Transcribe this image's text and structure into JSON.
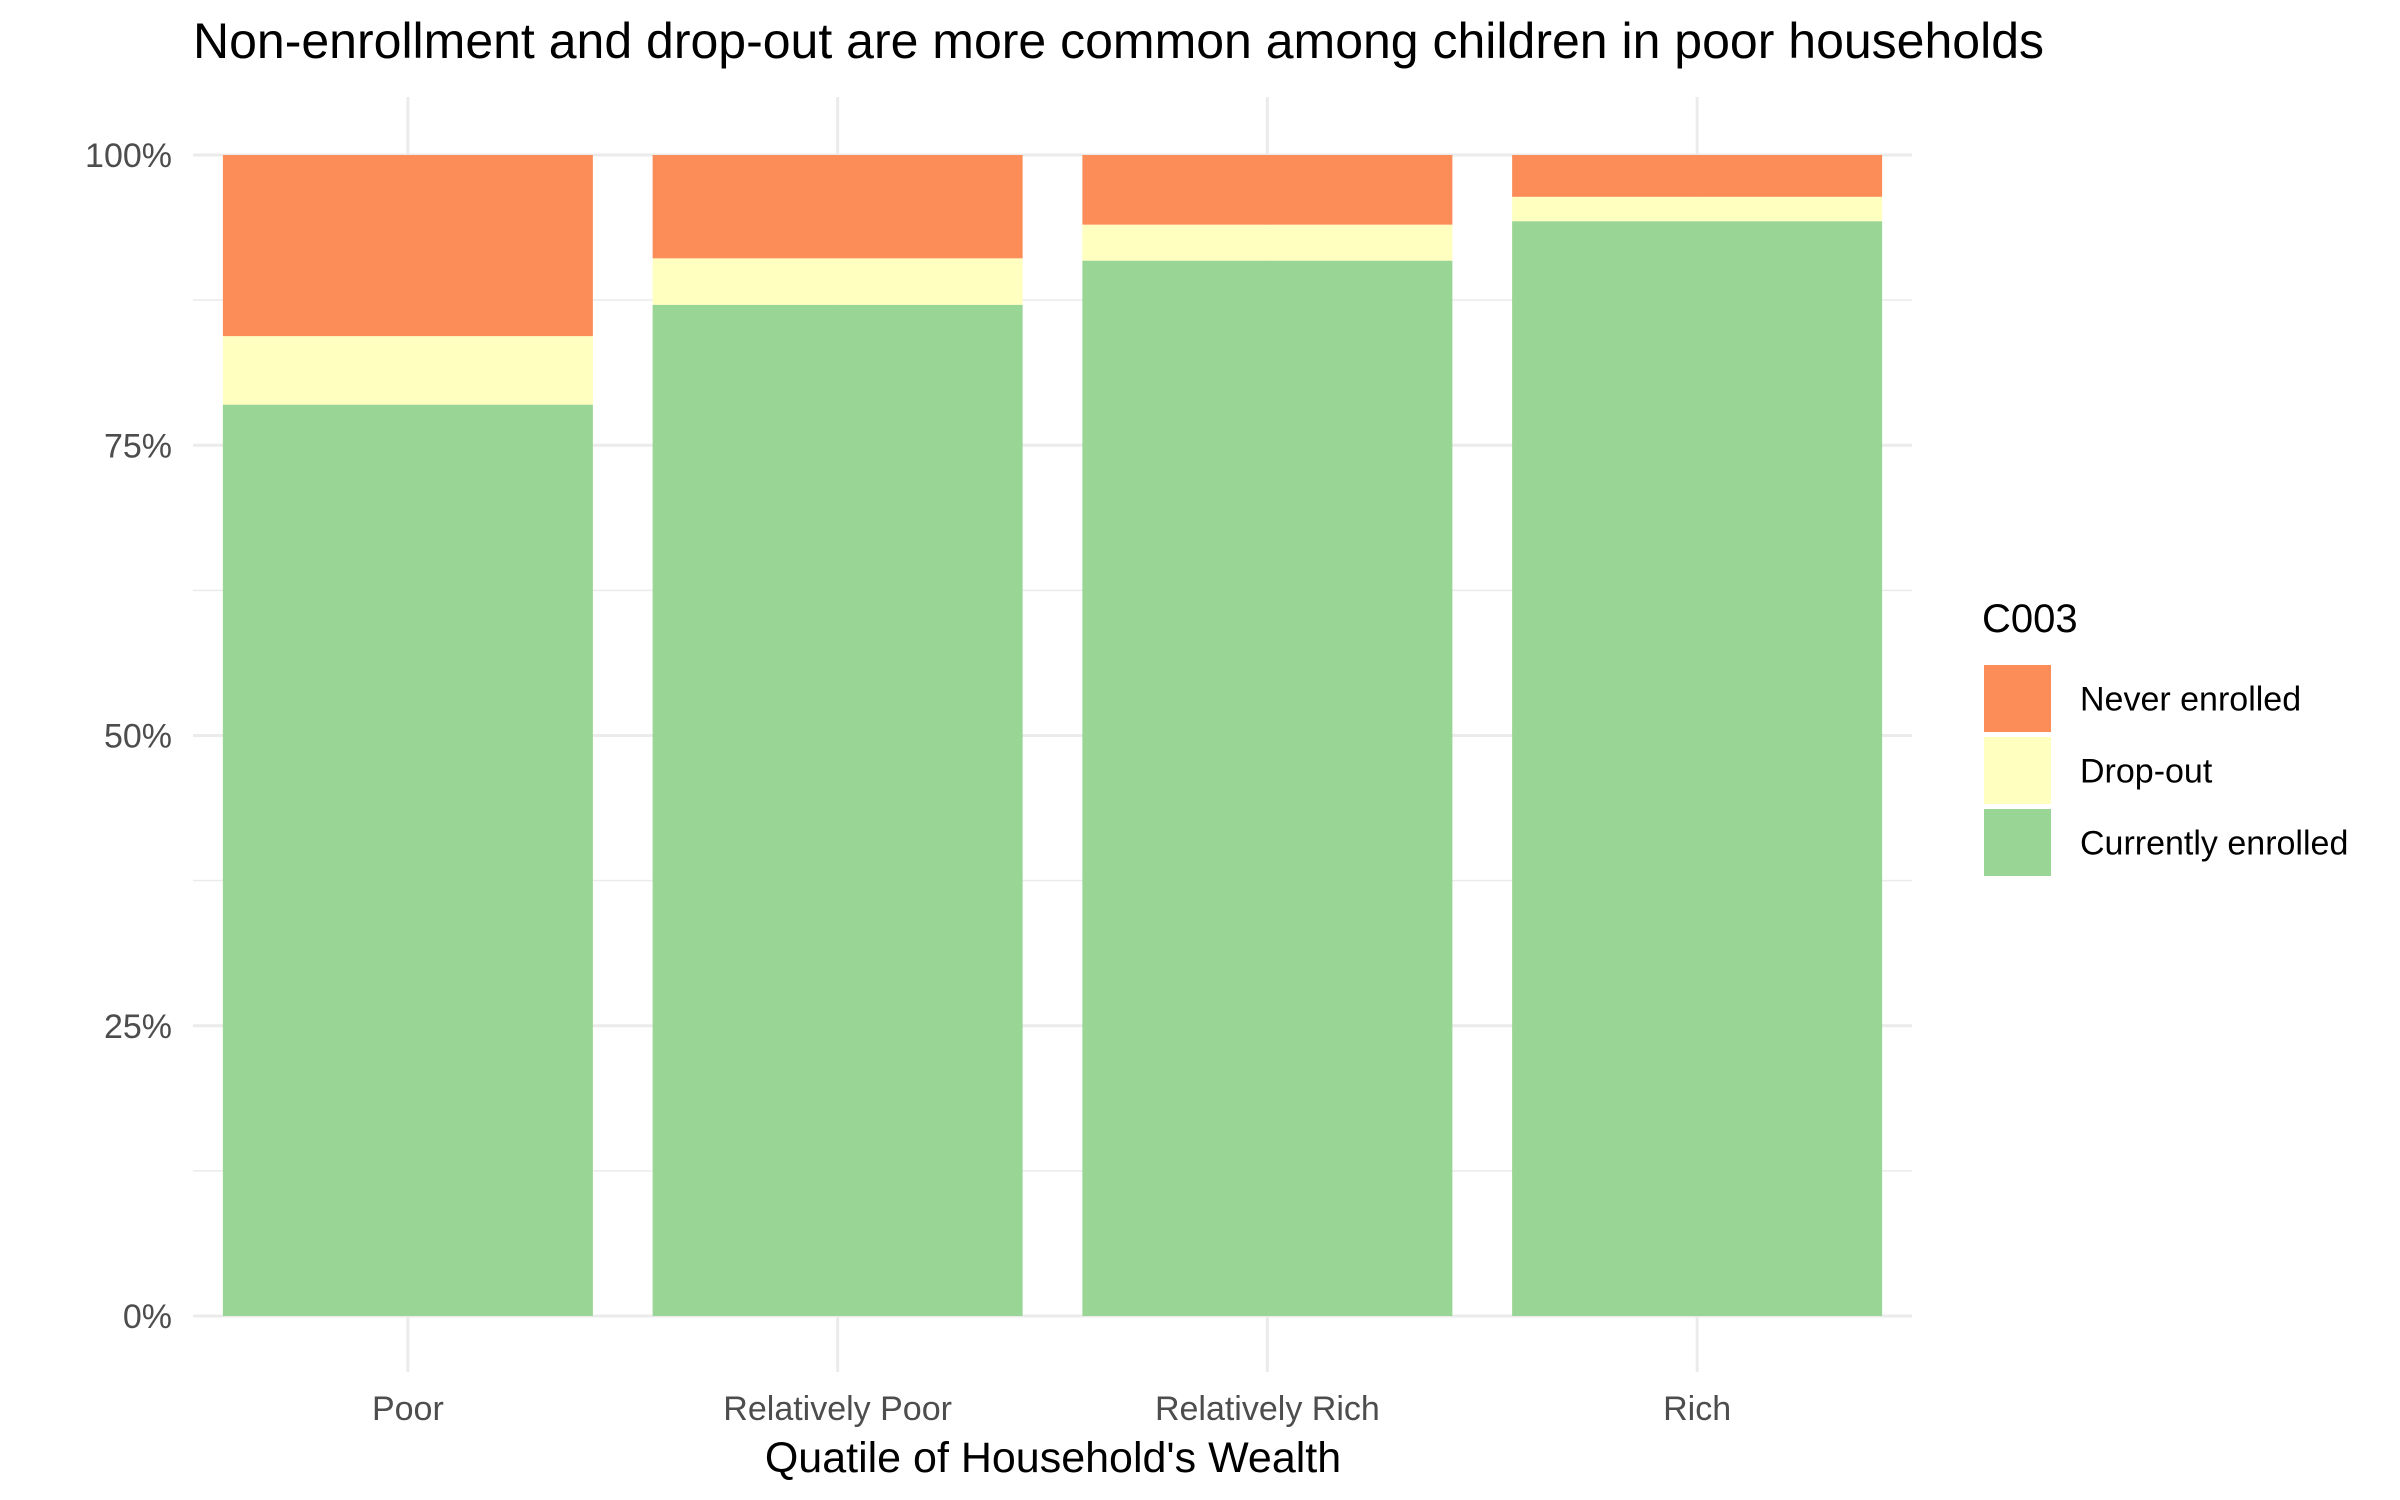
{
  "chart_data": {
    "type": "bar",
    "stacked": true,
    "title": "Non-enrollment and drop-out are more common among children in poor households",
    "xlabel": "Quatile of Household's Wealth",
    "ylabel": "",
    "ylim": [
      0,
      1
    ],
    "y_ticks": [
      {
        "value": 0,
        "label": "0%"
      },
      {
        "value": 0.25,
        "label": "25%"
      },
      {
        "value": 0.5,
        "label": "50%"
      },
      {
        "value": 0.75,
        "label": "75%"
      },
      {
        "value": 1,
        "label": "100%"
      }
    ],
    "categories": [
      "Poor",
      "Relatively Poor",
      "Relatively Rich",
      "Rich"
    ],
    "legend": {
      "title": "C003",
      "position": "right"
    },
    "grid": true,
    "series": [
      {
        "name": "Currently enrolled",
        "color": "#99d594",
        "values": [
          0.785,
          0.871,
          0.909,
          0.943
        ]
      },
      {
        "name": "Drop-out",
        "color": "#ffffbf",
        "values": [
          0.059,
          0.04,
          0.031,
          0.021
        ]
      },
      {
        "name": "Never enrolled",
        "color": "#fc8d59",
        "values": [
          0.156,
          0.089,
          0.06,
          0.036
        ]
      }
    ],
    "legend_order": [
      "Never enrolled",
      "Drop-out",
      "Currently enrolled"
    ]
  }
}
